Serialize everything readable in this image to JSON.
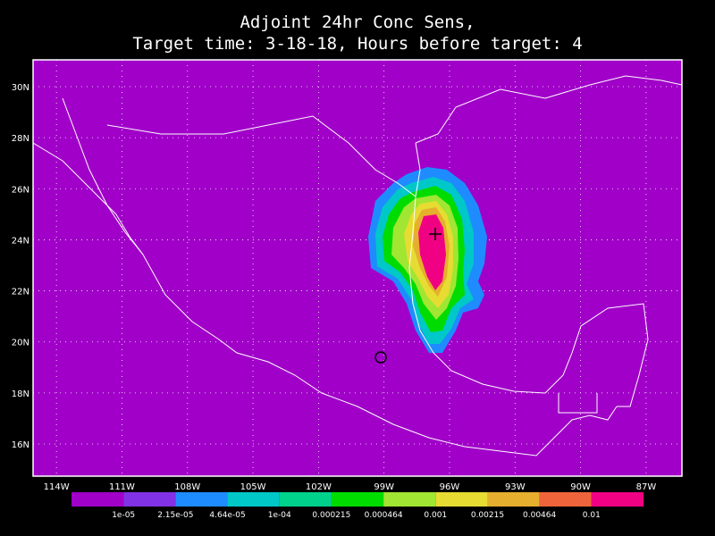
{
  "title": [
    "Adjoint 24hr Conc Sens,",
    "Target time: 3-18-18, Hours before target: 4"
  ],
  "map": {
    "background": "#a000c8",
    "xlim": [
      -115.07,
      -85.36
    ],
    "ylim": [
      14.74,
      31.05
    ],
    "xticks": [
      {
        "value": -114,
        "label": "114W"
      },
      {
        "value": -111,
        "label": "111W"
      },
      {
        "value": -108,
        "label": "108W"
      },
      {
        "value": -105,
        "label": "105W"
      },
      {
        "value": -102,
        "label": "102W"
      },
      {
        "value": -99,
        "label": "99W"
      },
      {
        "value": -96,
        "label": "96W"
      },
      {
        "value": -93,
        "label": "93W"
      },
      {
        "value": -90,
        "label": "90W"
      },
      {
        "value": -87,
        "label": "87W"
      }
    ],
    "yticks": [
      {
        "value": 16,
        "label": "16N"
      },
      {
        "value": 18,
        "label": "18N"
      },
      {
        "value": 20,
        "label": "20N"
      },
      {
        "value": 22,
        "label": "22N"
      },
      {
        "value": 24,
        "label": "24N"
      },
      {
        "value": 26,
        "label": "26N"
      },
      {
        "value": 28,
        "label": "28N"
      },
      {
        "value": 30,
        "label": "30N"
      }
    ]
  },
  "colorbar": {
    "colors": [
      "#a000c8",
      "#8232e6",
      "#1e8cff",
      "#00c8c8",
      "#00d28c",
      "#00dc00",
      "#a0e632",
      "#e6dc32",
      "#e6af2d",
      "#f0643c",
      "#f00082"
    ],
    "labels": [
      "1e-05",
      "2.15e-05",
      "4.64e-05",
      "1e-04",
      "0.000215",
      "0.000464",
      "0.001",
      "0.00215",
      "0.00464",
      "0.01"
    ]
  }
}
